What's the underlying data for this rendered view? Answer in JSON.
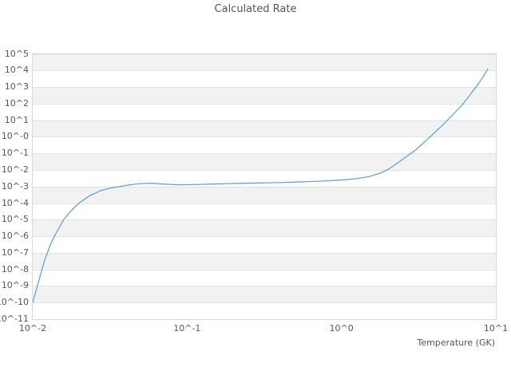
{
  "page": {
    "title": "Calculated Rate"
  },
  "chart_data": {
    "type": "line",
    "title": "Calculated Rate",
    "xlabel": "Temperature (GK)",
    "ylabel": "",
    "x_scale": "log10",
    "y_scale": "log10",
    "xlim_log10": [
      -2,
      1
    ],
    "ylim_log10": [
      -11,
      5
    ],
    "x_tick_labels": [
      "10^-2",
      "10^-1",
      "10^0",
      "10^1"
    ],
    "x_tick_log10": [
      -2,
      -1,
      0,
      1
    ],
    "y_tick_labels": [
      "10^5",
      "10^4",
      "10^3",
      "10^2",
      "10^1",
      "10^-0",
      "10^-1",
      "10^-2",
      "10^-3",
      "10^-4",
      "10^-5",
      "10^-6",
      "10^-7",
      "10^-8",
      "10^-9",
      "10^-10",
      "10^-11"
    ],
    "y_tick_log10": [
      5,
      4,
      3,
      2,
      1,
      0,
      -1,
      -2,
      -3,
      -4,
      -5,
      -6,
      -7,
      -8,
      -9,
      -10,
      -11
    ],
    "grid": "horizontal-only",
    "legend": "none",
    "background_bands": "alternating gray/white per decade, gray first at top",
    "colors": {
      "line": "#5b9bd5",
      "band": "#f2f2f2",
      "gridline": "#e2e2e2",
      "plot_border": "#d9d9d9",
      "text": "#555555",
      "background": "#ffffff"
    },
    "series": [
      {
        "name": "Calculated Rate",
        "log10_T": [
          -2.0,
          -1.985,
          -1.97,
          -1.955,
          -1.94,
          -1.925,
          -1.905,
          -1.885,
          -1.86,
          -1.83,
          -1.8,
          -1.755,
          -1.7,
          -1.63,
          -1.56,
          -1.5,
          -1.44,
          -1.38,
          -1.31,
          -1.24,
          -1.16,
          -1.05,
          -0.95,
          -0.83,
          -0.7,
          -0.55,
          -0.4,
          -0.25,
          -0.1,
          0.0,
          0.1,
          0.18,
          0.25,
          0.3,
          0.36,
          0.42,
          0.48,
          0.54,
          0.6,
          0.66,
          0.72,
          0.78,
          0.84,
          0.88,
          0.92,
          0.95
        ],
        "log10_rate": [
          -10.0,
          -9.5,
          -9.0,
          -8.5,
          -8.0,
          -7.5,
          -7.0,
          -6.5,
          -6.0,
          -5.5,
          -5.0,
          -4.5,
          -4.0,
          -3.55,
          -3.25,
          -3.1,
          -3.0,
          -2.91,
          -2.83,
          -2.8,
          -2.85,
          -2.9,
          -2.88,
          -2.85,
          -2.82,
          -2.79,
          -2.76,
          -2.72,
          -2.66,
          -2.61,
          -2.52,
          -2.4,
          -2.2,
          -1.98,
          -1.6,
          -1.2,
          -0.8,
          -0.3,
          0.22,
          0.75,
          1.32,
          1.9,
          2.62,
          3.1,
          3.65,
          4.11
        ]
      }
    ]
  }
}
